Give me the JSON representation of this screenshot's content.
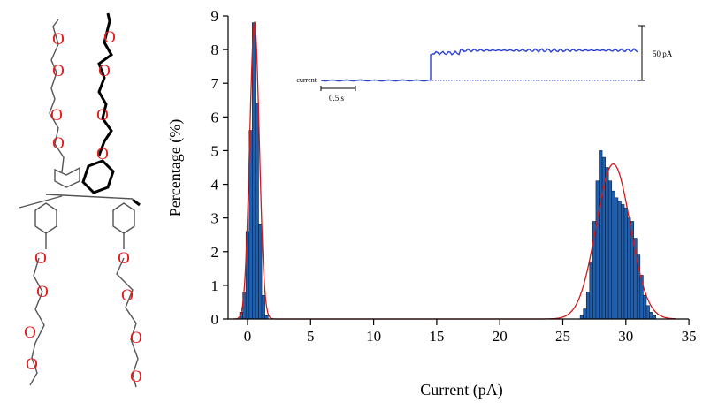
{
  "chart_data": {
    "type": "bar",
    "xlabel": "Current (pA)",
    "ylabel": "Percentage (%)",
    "xlim": [
      -1.5,
      35
    ],
    "ylim": [
      0,
      9
    ],
    "xticks": [
      "0",
      "5",
      "10",
      "15",
      "20",
      "25",
      "30",
      "35"
    ],
    "yticks": [
      "0",
      "1",
      "2",
      "3",
      "4",
      "5",
      "6",
      "7",
      "8",
      "9"
    ],
    "grid": false,
    "legend": "none",
    "bin_width": 0.25,
    "histogram": {
      "x": [
        -0.5,
        -0.25,
        0.0,
        0.25,
        0.5,
        0.75,
        1.0,
        1.25,
        1.5,
        26.5,
        26.75,
        27.0,
        27.25,
        27.5,
        27.75,
        28.0,
        28.25,
        28.5,
        28.75,
        29.0,
        29.25,
        29.5,
        29.75,
        30.0,
        30.25,
        30.5,
        30.75,
        31.0,
        31.25,
        31.5,
        31.75,
        32.0,
        32.25
      ],
      "values": [
        0.2,
        0.8,
        2.6,
        5.6,
        8.8,
        6.4,
        2.8,
        0.7,
        0.1,
        0.1,
        0.3,
        0.8,
        1.7,
        2.9,
        4.1,
        5.0,
        4.8,
        4.5,
        4.1,
        3.8,
        3.6,
        3.5,
        3.4,
        3.3,
        3.0,
        2.9,
        2.4,
        1.9,
        1.3,
        0.7,
        0.4,
        0.2,
        0.1
      ]
    },
    "fits": [
      {
        "amplitude": 8.8,
        "mean": 0.55,
        "sigma": 0.38
      },
      {
        "amplitude": 4.6,
        "mean": 29.0,
        "sigma": 1.35
      }
    ],
    "colors": {
      "bars": "#1f5fae",
      "fit": "#d11a1a",
      "axes": "#000000"
    }
  },
  "inset": {
    "label": "current",
    "time_scale": "0.5 s",
    "current_scale": "50 pA",
    "trace_color": "#2a3fd0"
  },
  "structure": {
    "atom_label": "O",
    "colors": {
      "oxygen": "#e8191a",
      "bond_light": "#555555",
      "bond_bold": "#000000"
    }
  }
}
